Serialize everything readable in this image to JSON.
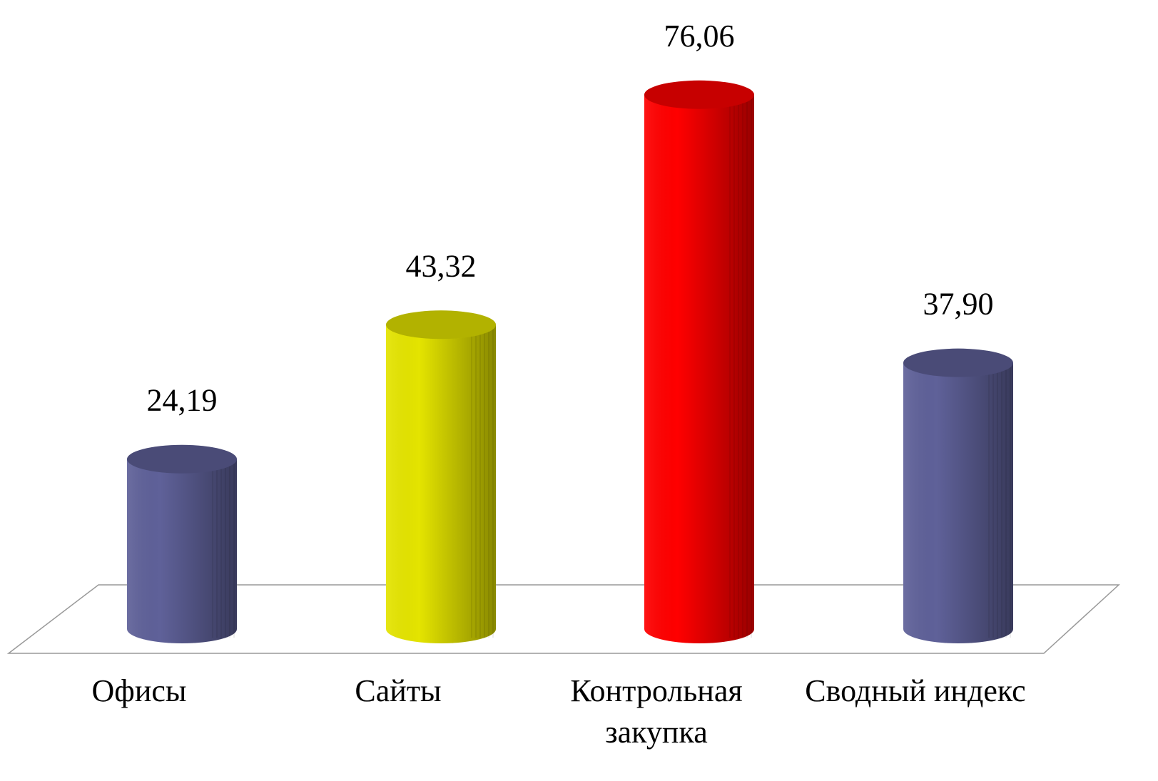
{
  "chart_data": {
    "type": "bar3d-cylinder",
    "categories": [
      "Офисы",
      "Сайты",
      "Контрольная закупка",
      "Сводный индекс"
    ],
    "values": [
      24.19,
      43.32,
      76.06,
      37.9
    ],
    "value_labels": [
      "24,19",
      "43,32",
      "76,06",
      "37,90"
    ],
    "colors": [
      "#5f6199",
      "#e4e400",
      "#ff0000",
      "#5f6199"
    ]
  }
}
